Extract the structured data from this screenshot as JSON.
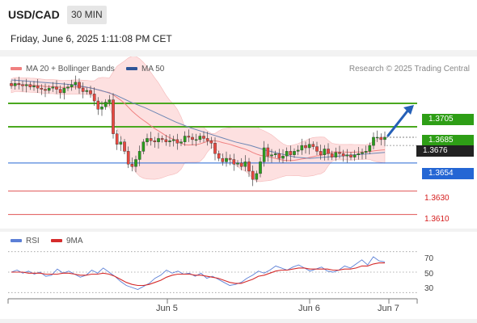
{
  "header": {
    "pair": "USD/CAD",
    "timeframe": "30 MIN"
  },
  "datetime": "Friday, June 6, 2025 1:11:08 PM CET",
  "legend": {
    "ma20": "MA 20 + Bollinger Bands",
    "ma50": "MA 50",
    "credit": "Research © 2025 Trading Central",
    "rsi": "RSI",
    "rsi_ma": "9MA"
  },
  "colors": {
    "up_candle": "#2a9e1c",
    "down_candle": "#e8473f",
    "bollinger_fill": "#fde0e0",
    "ma20": "#f08080",
    "ma50": "#6d86b4",
    "resistance": "#4aa81f",
    "support": "#2466d4",
    "lower_target": "#e05555",
    "rsi_line": "#5b7fd6",
    "rsi_ma_line": "#d52b2b",
    "arrow": "#2560b8"
  },
  "chart_data": [
    {
      "type": "candlestick",
      "title": "USD/CAD",
      "xlabel": "",
      "ylabel": "",
      "ylim": [
        1.3598,
        1.3745
      ],
      "x_ticks": [
        "Jun 5",
        "Jun 6",
        "Jun 7"
      ],
      "last_price": "1.3676",
      "close_series": [
        1.372,
        1.3722,
        1.3721,
        1.372,
        1.3721,
        1.3719,
        1.372,
        1.3718,
        1.3717,
        1.3716,
        1.3718,
        1.3719,
        1.3717,
        1.3714,
        1.3718,
        1.3719,
        1.3721,
        1.3723,
        1.3718,
        1.3715,
        1.3716,
        1.3713,
        1.3707,
        1.37,
        1.3702,
        1.3706,
        1.3708,
        1.3679,
        1.367,
        1.3672,
        1.3664,
        1.3653,
        1.3651,
        1.3657,
        1.3664,
        1.3672,
        1.3675,
        1.3673,
        1.3672,
        1.3675,
        1.3674,
        1.3672,
        1.3673,
        1.3674,
        1.3671,
        1.3672,
        1.3677,
        1.3676,
        1.3674,
        1.3674,
        1.3677,
        1.3675,
        1.3673,
        1.3671,
        1.3662,
        1.3658,
        1.3655,
        1.3658,
        1.3657,
        1.3653,
        1.3654,
        1.3651,
        1.3655,
        1.3647,
        1.364,
        1.3645,
        1.3655,
        1.3667,
        1.366,
        1.3661,
        1.3662,
        1.3658,
        1.366,
        1.3664,
        1.3661,
        1.3664,
        1.3665,
        1.3669,
        1.3667,
        1.367,
        1.3668,
        1.3664,
        1.3661,
        1.3666,
        1.3662,
        1.3659,
        1.3663,
        1.3662,
        1.366,
        1.3661,
        1.3659,
        1.3661,
        1.3662,
        1.3663,
        1.3664,
        1.3669,
        1.3676,
        1.3676,
        1.3674,
        1.3676
      ],
      "ma50_series": [
        1.3725,
        1.3724,
        1.3723,
        1.3722,
        1.3721,
        1.3719,
        1.3716,
        1.3712,
        1.3706,
        1.3701,
        1.3695,
        1.3689,
        1.3684,
        1.368,
        1.3676,
        1.3672,
        1.3669,
        1.3665,
        1.3662,
        1.3659,
        1.3658,
        1.3659,
        1.366,
        1.3661,
        1.3662,
        1.3663
      ],
      "levels": [
        {
          "label": "1.3705",
          "value": 1.3705,
          "kind": "resistance"
        },
        {
          "label": "1.3685",
          "value": 1.3685,
          "kind": "resistance"
        },
        {
          "label": "1.3654",
          "value": 1.3654,
          "kind": "support"
        },
        {
          "label": "1.3630",
          "value": 1.363,
          "kind": "lower_target"
        },
        {
          "label": "1.3610",
          "value": 1.361,
          "kind": "lower_target"
        }
      ]
    },
    {
      "type": "line",
      "title": "RSI",
      "ylim": [
        20,
        80
      ],
      "y_ticks": [
        70,
        50,
        30
      ],
      "series": [
        {
          "name": "RSI",
          "values": [
            50,
            52,
            49,
            51,
            48,
            50,
            46,
            47,
            53,
            49,
            51,
            48,
            45,
            47,
            52,
            49,
            54,
            50,
            46,
            41,
            37,
            35,
            33,
            36,
            39,
            44,
            47,
            52,
            49,
            51,
            48,
            49,
            46,
            49,
            44,
            46,
            43,
            40,
            37,
            38,
            40,
            44,
            47,
            51,
            49,
            52,
            56,
            54,
            52,
            55,
            57,
            54,
            51,
            53,
            55,
            51,
            50,
            52,
            56,
            54,
            58,
            62,
            57,
            65,
            61,
            60
          ]
        },
        {
          "name": "9MA",
          "values": [
            50,
            50,
            50,
            49,
            49,
            49,
            48,
            48,
            48,
            49,
            49,
            48,
            47,
            47,
            48,
            48,
            49,
            48,
            46,
            43,
            40,
            38,
            37,
            37,
            38,
            40,
            42,
            45,
            47,
            48,
            48,
            48,
            47,
            47,
            46,
            45,
            44,
            42,
            40,
            39,
            39,
            41,
            43,
            46,
            47,
            49,
            51,
            52,
            52,
            53,
            54,
            54,
            53,
            53,
            53,
            53,
            52,
            52,
            53,
            53,
            54,
            56,
            56,
            58,
            59,
            59
          ]
        }
      ]
    }
  ]
}
